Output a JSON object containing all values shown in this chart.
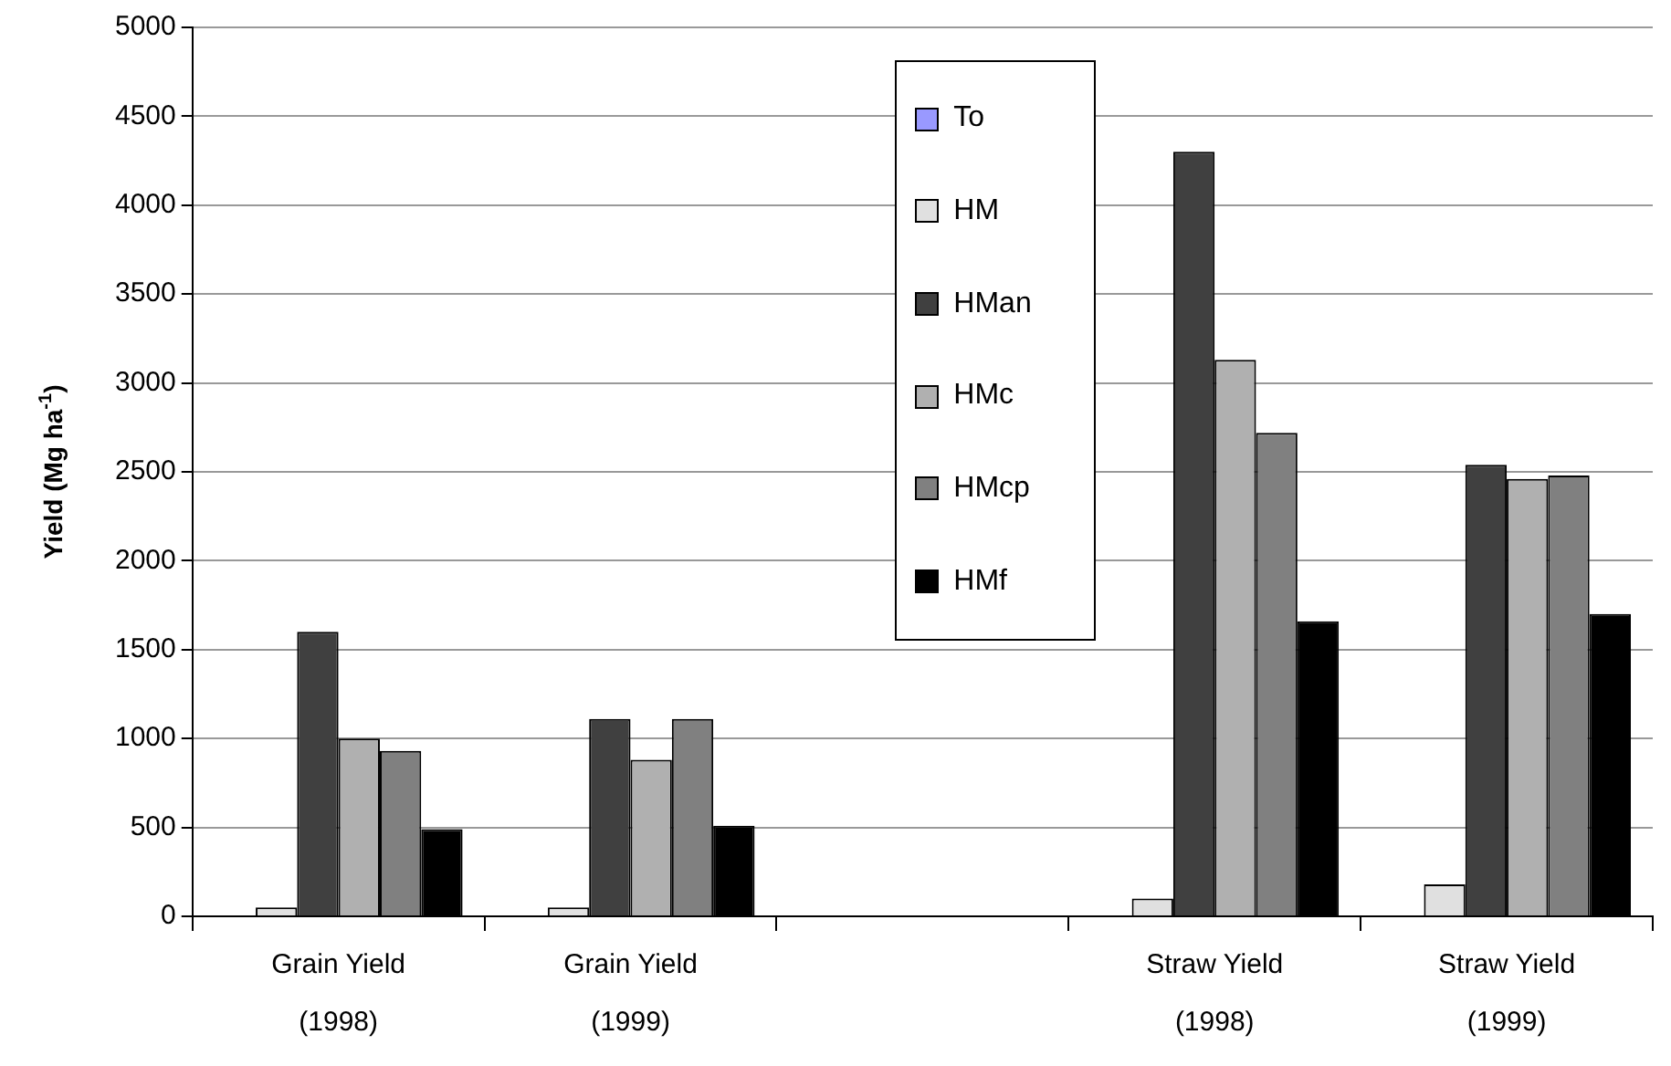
{
  "chart_data": {
    "type": "bar",
    "ylabel": "Yield (Mg ha$^{-1}$)",
    "categories": [
      "Grain Yield\n(1998)",
      "Grain Yield\n(1999)",
      null,
      "Straw Yield\n(1998)",
      "Straw Yield\n(1999)"
    ],
    "series": [
      {
        "name": "To",
        "color": "#9999ff",
        "values": [
          0,
          0,
          null,
          0,
          0
        ]
      },
      {
        "name": "HM",
        "color": "#e0e0e0",
        "values": [
          50,
          50,
          null,
          100,
          180
        ]
      },
      {
        "name": "HMan",
        "color": "#404040",
        "values": [
          1600,
          1110,
          null,
          4300,
          2540
        ]
      },
      {
        "name": "HMc",
        "color": "#b0b0b0",
        "values": [
          1000,
          880,
          null,
          3130,
          2460
        ]
      },
      {
        "name": "HMcp",
        "color": "#808080",
        "values": [
          930,
          1110,
          null,
          2720,
          2480
        ]
      },
      {
        "name": "HMf",
        "color": "#000000",
        "values": [
          490,
          510,
          null,
          1660,
          1700
        ]
      }
    ],
    "ylim": [
      0,
      5000
    ],
    "yticks": [
      0,
      500,
      1000,
      1500,
      2000,
      2500,
      3000,
      3500,
      4000,
      4500,
      5000
    ],
    "grid": "y",
    "legend": "top"
  }
}
